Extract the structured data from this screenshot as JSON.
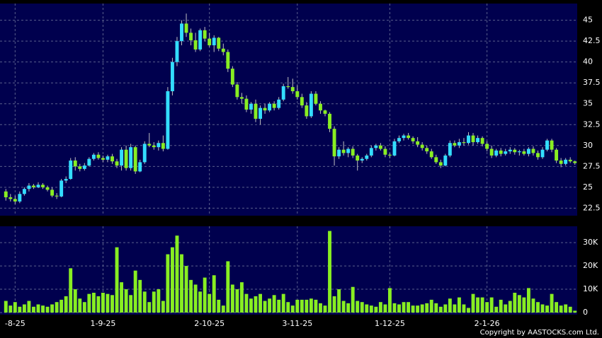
{
  "chart_data": {
    "type": "candlestick",
    "categories": [
      null,
      null,
      "-8-25",
      null,
      null,
      null,
      null,
      null,
      null,
      null,
      null,
      null,
      null,
      null,
      null,
      null,
      null,
      null,
      null,
      null,
      null,
      "1-9-25",
      null,
      null,
      null,
      null,
      null,
      null,
      null,
      null,
      null,
      null,
      null,
      null,
      null,
      null,
      null,
      null,
      null,
      null,
      null,
      null,
      null,
      null,
      "2-10-25",
      null,
      null,
      null,
      null,
      null,
      null,
      null,
      null,
      null,
      null,
      null,
      null,
      null,
      null,
      null,
      null,
      null,
      null,
      "3-11-25",
      null,
      null,
      null,
      null,
      null,
      null,
      null,
      null,
      null,
      null,
      null,
      null,
      null,
      null,
      null,
      null,
      null,
      null,
      null,
      "1-12-25",
      null,
      null,
      null,
      null,
      null,
      null,
      null,
      null,
      null,
      null,
      null,
      null,
      null,
      null,
      null,
      null,
      null,
      null,
      null,
      null,
      "2-1-26",
      null,
      null,
      null,
      null,
      null,
      null,
      null,
      null,
      null,
      null,
      null,
      null,
      null,
      null,
      null,
      null,
      null,
      null,
      null
    ],
    "ohlc": [
      [
        24.5,
        24.8,
        23.4,
        23.8
      ],
      [
        23.8,
        24.2,
        23.3,
        23.6
      ],
      [
        23.6,
        24.0,
        23.0,
        23.3
      ],
      [
        23.3,
        24.5,
        23.1,
        24.2
      ],
      [
        24.2,
        25.0,
        24.0,
        24.8
      ],
      [
        24.8,
        25.5,
        24.5,
        25.2
      ],
      [
        25.2,
        25.4,
        24.8,
        25.0
      ],
      [
        25.0,
        25.6,
        24.9,
        25.3
      ],
      [
        25.3,
        25.5,
        24.8,
        25.0
      ],
      [
        25.0,
        25.2,
        24.5,
        24.7
      ],
      [
        24.7,
        25.0,
        23.8,
        24.0
      ],
      [
        24.0,
        24.3,
        23.6,
        23.9
      ],
      [
        23.9,
        26.0,
        23.8,
        25.8
      ],
      [
        25.8,
        26.3,
        25.5,
        26.0
      ],
      [
        26.0,
        28.5,
        25.9,
        28.2
      ],
      [
        28.2,
        28.6,
        27.0,
        27.5
      ],
      [
        27.5,
        27.8,
        26.9,
        27.2
      ],
      [
        27.2,
        27.9,
        27.0,
        27.6
      ],
      [
        27.6,
        28.6,
        27.5,
        28.4
      ],
      [
        28.4,
        29.1,
        28.2,
        28.9
      ],
      [
        28.9,
        29.2,
        28.3,
        28.5
      ],
      [
        28.5,
        28.8,
        28.0,
        28.3
      ],
      [
        28.3,
        28.9,
        28.0,
        28.7
      ],
      [
        28.7,
        29.0,
        27.8,
        28.1
      ],
      [
        28.1,
        28.4,
        27.3,
        27.6
      ],
      [
        27.6,
        29.8,
        27.0,
        29.5
      ],
      [
        29.5,
        30.0,
        27.0,
        27.3
      ],
      [
        27.3,
        30.2,
        27.0,
        29.8
      ],
      [
        29.8,
        30.0,
        26.6,
        26.9
      ],
      [
        26.9,
        28.3,
        26.8,
        28.0
      ],
      [
        28.0,
        30.5,
        27.8,
        30.2
      ],
      [
        30.2,
        31.5,
        29.8,
        30.0
      ],
      [
        30.0,
        30.4,
        29.5,
        29.8
      ],
      [
        29.8,
        30.6,
        29.4,
        30.3
      ],
      [
        30.3,
        31.2,
        29.3,
        29.6
      ],
      [
        29.6,
        37.0,
        29.5,
        36.5
      ],
      [
        36.5,
        40.5,
        36.0,
        40.0
      ],
      [
        40.0,
        43.0,
        39.5,
        42.5
      ],
      [
        42.5,
        45.0,
        42.0,
        44.6
      ],
      [
        44.6,
        45.8,
        43.0,
        43.5
      ],
      [
        43.5,
        44.0,
        42.0,
        42.6
      ],
      [
        42.6,
        43.5,
        41.2,
        41.5
      ],
      [
        41.5,
        44.0,
        41.3,
        43.8
      ],
      [
        43.8,
        44.2,
        42.5,
        42.8
      ],
      [
        42.8,
        43.5,
        41.8,
        42.0
      ],
      [
        42.0,
        43.2,
        41.2,
        42.9
      ],
      [
        42.9,
        43.0,
        41.3,
        41.6
      ],
      [
        41.6,
        42.2,
        40.8,
        41.2
      ],
      [
        41.2,
        41.5,
        38.8,
        39.2
      ],
      [
        39.2,
        39.5,
        37.0,
        37.3
      ],
      [
        37.3,
        37.6,
        35.5,
        35.8
      ],
      [
        35.8,
        36.3,
        35.0,
        35.6
      ],
      [
        35.6,
        36.0,
        34.0,
        34.3
      ],
      [
        34.3,
        35.2,
        33.8,
        35.0
      ],
      [
        35.0,
        35.5,
        32.8,
        33.2
      ],
      [
        33.2,
        34.8,
        32.5,
        34.5
      ],
      [
        34.5,
        35.0,
        33.8,
        34.2
      ],
      [
        34.2,
        35.2,
        34.0,
        35.0
      ],
      [
        35.0,
        35.3,
        34.2,
        34.5
      ],
      [
        34.5,
        35.8,
        34.3,
        35.5
      ],
      [
        35.5,
        37.4,
        35.3,
        37.1
      ],
      [
        37.1,
        38.2,
        36.8,
        37.0
      ],
      [
        37.0,
        38.0,
        36.2,
        36.5
      ],
      [
        36.5,
        37.2,
        35.5,
        35.8
      ],
      [
        35.8,
        36.2,
        34.5,
        34.8
      ],
      [
        34.8,
        35.2,
        33.2,
        33.5
      ],
      [
        33.5,
        36.5,
        33.3,
        36.2
      ],
      [
        36.2,
        36.5,
        34.8,
        35.0
      ],
      [
        35.0,
        35.3,
        33.8,
        34.2
      ],
      [
        34.2,
        34.3,
        33.5,
        33.8
      ],
      [
        33.8,
        34.0,
        31.6,
        32.0
      ],
      [
        32.0,
        32.3,
        27.6,
        28.7
      ],
      [
        28.7,
        29.8,
        28.4,
        29.5
      ],
      [
        29.5,
        30.5,
        28.8,
        29.1
      ],
      [
        29.1,
        29.8,
        28.6,
        29.6
      ],
      [
        29.6,
        29.9,
        28.5,
        28.8
      ],
      [
        28.8,
        29.0,
        27.0,
        28.2
      ],
      [
        28.2,
        28.6,
        27.9,
        28.4
      ],
      [
        28.4,
        29.0,
        28.2,
        28.8
      ],
      [
        28.8,
        30.0,
        28.6,
        29.7
      ],
      [
        29.7,
        30.2,
        29.4,
        30.0
      ],
      [
        30.0,
        30.3,
        29.4,
        29.6
      ],
      [
        29.6,
        29.9,
        28.6,
        28.9
      ],
      [
        28.9,
        29.1,
        28.5,
        28.8
      ],
      [
        28.8,
        30.8,
        28.7,
        30.5
      ],
      [
        30.5,
        31.2,
        30.3,
        30.9
      ],
      [
        30.9,
        31.4,
        30.6,
        31.2
      ],
      [
        31.2,
        31.5,
        30.7,
        30.9
      ],
      [
        30.9,
        31.1,
        30.2,
        30.5
      ],
      [
        30.5,
        31.0,
        29.8,
        30.1
      ],
      [
        30.1,
        30.4,
        29.4,
        29.7
      ],
      [
        29.7,
        30.0,
        29.0,
        29.3
      ],
      [
        29.3,
        29.6,
        28.4,
        28.6
      ],
      [
        28.6,
        28.9,
        27.8,
        28.0
      ],
      [
        28.0,
        28.3,
        27.3,
        27.6
      ],
      [
        27.6,
        29.0,
        27.5,
        28.8
      ],
      [
        28.8,
        30.6,
        28.6,
        30.3
      ],
      [
        30.3,
        30.6,
        29.8,
        30.0
      ],
      [
        30.0,
        30.8,
        29.7,
        30.4
      ],
      [
        30.4,
        30.9,
        30.0,
        30.3
      ],
      [
        30.3,
        31.6,
        30.1,
        31.2
      ],
      [
        31.2,
        31.5,
        30.0,
        30.4
      ],
      [
        30.4,
        31.2,
        30.2,
        30.9
      ],
      [
        30.9,
        31.1,
        29.9,
        30.2
      ],
      [
        30.2,
        30.5,
        29.3,
        29.6
      ],
      [
        29.6,
        30.0,
        28.5,
        28.8
      ],
      [
        28.8,
        29.6,
        28.6,
        29.4
      ],
      [
        29.4,
        29.7,
        28.7,
        29.0
      ],
      [
        29.0,
        29.6,
        28.8,
        29.3
      ],
      [
        29.3,
        29.8,
        29.0,
        29.5
      ],
      [
        29.5,
        29.7,
        28.9,
        29.2
      ],
      [
        29.2,
        29.5,
        28.8,
        29.3
      ],
      [
        29.3,
        29.6,
        28.8,
        29.0
      ],
      [
        29.0,
        29.8,
        28.7,
        29.6
      ],
      [
        29.6,
        29.9,
        28.8,
        29.1
      ],
      [
        29.1,
        29.4,
        28.3,
        28.6
      ],
      [
        28.6,
        29.8,
        28.4,
        29.5
      ],
      [
        29.5,
        30.8,
        29.3,
        30.6
      ],
      [
        30.6,
        30.8,
        29.2,
        29.5
      ],
      [
        29.5,
        29.7,
        27.9,
        28.2
      ],
      [
        28.2,
        28.5,
        27.4,
        27.8
      ],
      [
        27.8,
        28.5,
        27.6,
        28.3
      ],
      [
        28.3,
        28.6,
        27.9,
        28.1
      ],
      [
        28.1,
        28.2,
        27.7,
        27.9
      ]
    ],
    "volume": [
      5000,
      3000,
      4500,
      2500,
      3500,
      5000,
      2500,
      3500,
      3000,
      2500,
      3500,
      4500,
      5500,
      7000,
      19000,
      10000,
      6000,
      4500,
      8000,
      8500,
      7000,
      8500,
      8000,
      7500,
      28000,
      13000,
      10000,
      7500,
      18000,
      14000,
      9000,
      4500,
      9000,
      10000,
      5000,
      25000,
      28000,
      33000,
      25000,
      20000,
      14000,
      12000,
      9000,
      15000,
      8000,
      16000,
      5500,
      3000,
      22000,
      12000,
      10000,
      13000,
      8000,
      6000,
      7000,
      8000,
      5000,
      6000,
      7500,
      5500,
      8000,
      4500,
      3000,
      5500,
      5500,
      5500,
      6000,
      5500,
      4000,
      3000,
      35000,
      7000,
      10000,
      5000,
      4000,
      11000,
      5000,
      4500,
      3500,
      3000,
      2500,
      4500,
      3500,
      10500,
      4000,
      3500,
      4500,
      4500,
      3000,
      3000,
      3500,
      4000,
      5500,
      4000,
      2500,
      3500,
      6000,
      3500,
      6500,
      3500,
      2000,
      8000,
      6500,
      6500,
      4500,
      6500,
      2500,
      5500,
      3500,
      5000,
      8500,
      7500,
      6500,
      10500,
      6000,
      4500,
      3500,
      3000,
      8000,
      4500,
      3000,
      3500,
      2500,
      800
    ],
    "up_color": "#33ddff",
    "down_color": "#88ee22",
    "volume_color": "#88ee22",
    "wick_color": "#c0c0c0",
    "ylim": [
      21.6,
      47
    ],
    "yticks": [
      22.5,
      25,
      27.5,
      30,
      32.5,
      35,
      37.5,
      40,
      42.5,
      45
    ],
    "y2lim": [
      -900,
      37000
    ],
    "y2ticks": [
      0,
      {
        "value": 10000,
        "label": "10K"
      },
      {
        "value": 20000,
        "label": "20K"
      },
      {
        "value": 30000,
        "label": "30K"
      }
    ],
    "grid": true
  },
  "footer": "Copyright by AASTOCKS.com Ltd."
}
